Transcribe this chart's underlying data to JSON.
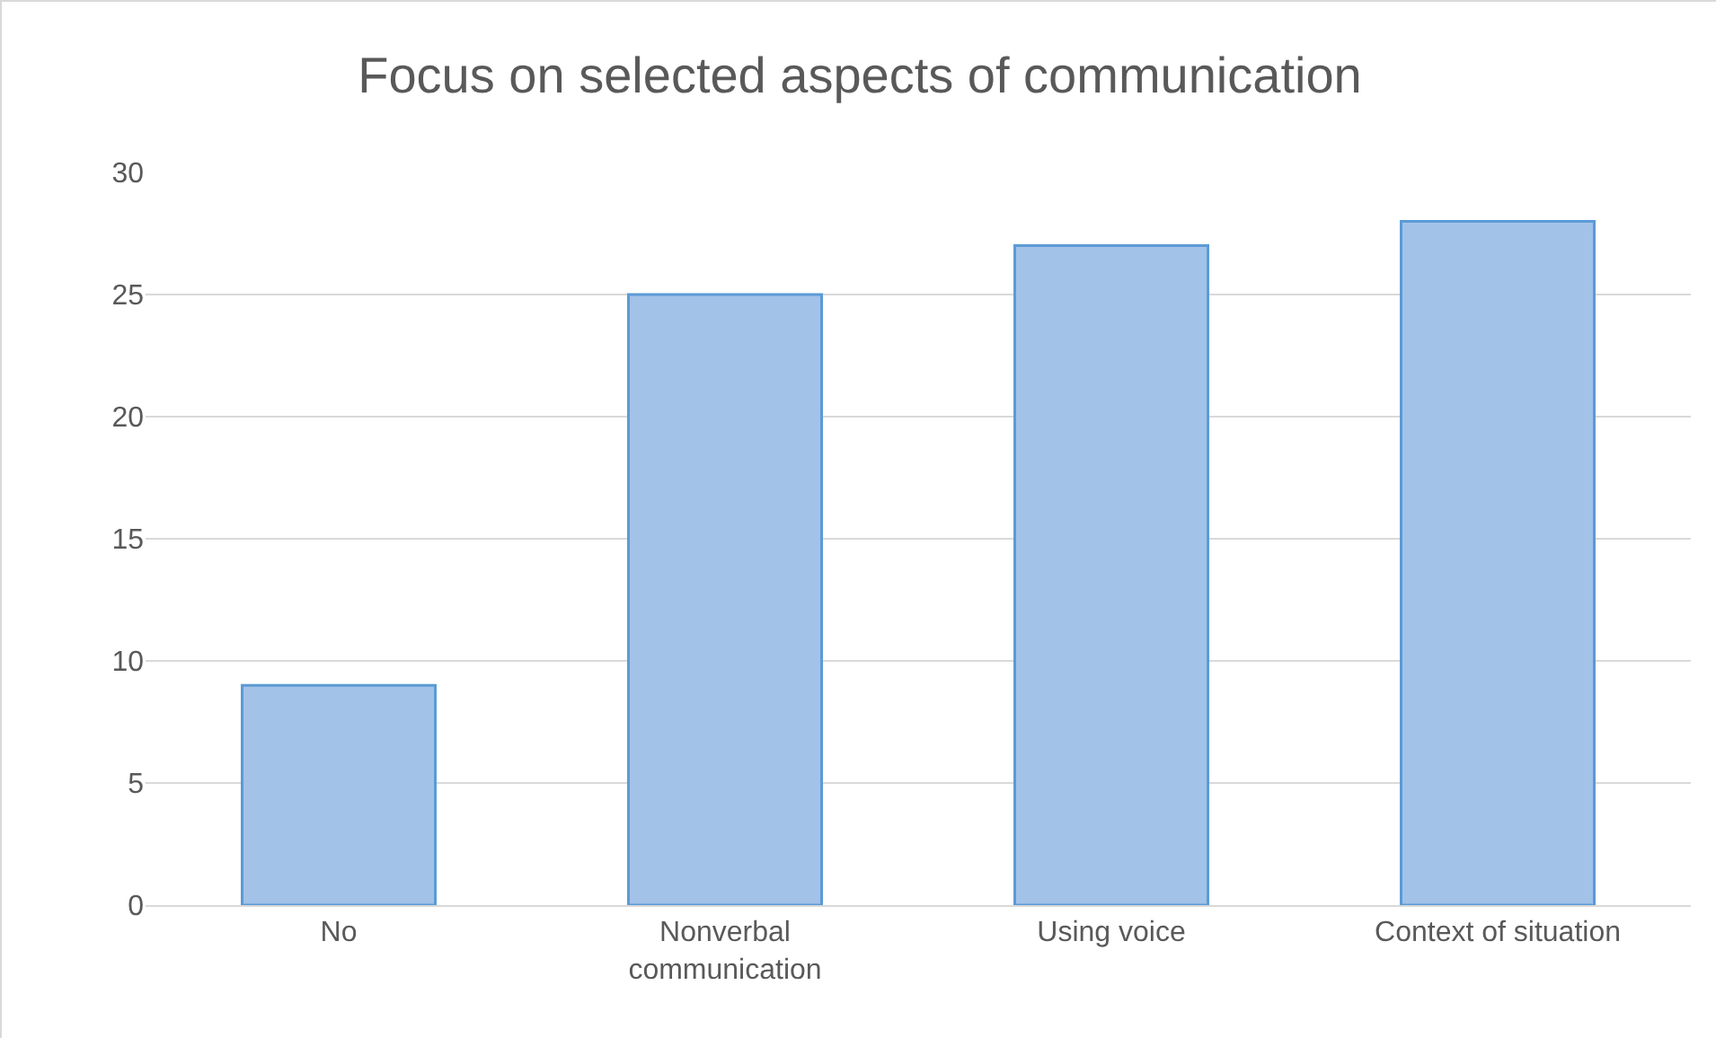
{
  "chart_data": {
    "type": "bar",
    "title": "Focus on selected aspects of communication",
    "categories": [
      "No",
      "Nonverbal communication",
      "Using voice",
      "Context of situation"
    ],
    "values": [
      9,
      25,
      27,
      28
    ],
    "color": "#a3c2e8",
    "ylim": [
      0,
      30
    ],
    "yticks": [
      0,
      5,
      10,
      15,
      20,
      25,
      30
    ],
    "grid": "y"
  }
}
